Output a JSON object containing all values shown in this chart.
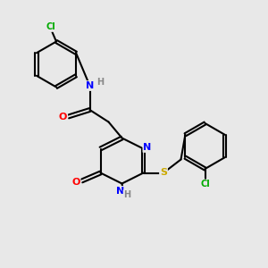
{
  "bg_color": "#e8e8e8",
  "atom_colors": {
    "C": "#000000",
    "N": "#0000ff",
    "O": "#ff0000",
    "S": "#ccaa00",
    "Cl": "#00aa00",
    "H": "#888888"
  },
  "bond_color": "#000000",
  "line_width": 1.5
}
